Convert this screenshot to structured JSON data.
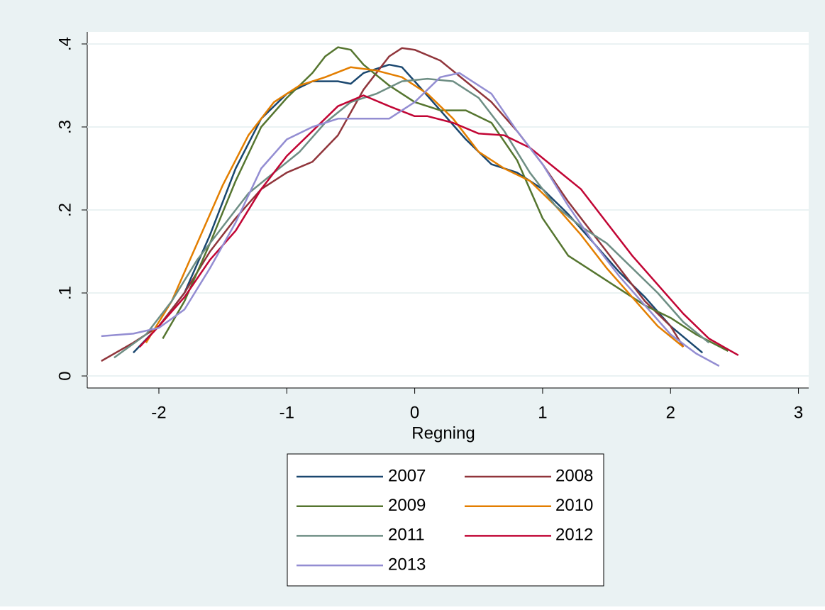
{
  "chart_data": {
    "type": "line",
    "x_label": "Regning",
    "xlim": [
      -2.56,
      3.08
    ],
    "xticks": [
      -2,
      -1,
      0,
      1,
      2,
      3
    ],
    "ylim": [
      -0.0145,
      0.4145
    ],
    "yticks": [
      0,
      {
        "value": 0.1,
        "label": ".1"
      },
      {
        "value": 0.2,
        "label": ".2"
      },
      {
        "value": 0.3,
        "label": ".3"
      },
      {
        "value": 0.4,
        "label": ".4"
      }
    ],
    "grid": true,
    "series": [
      {
        "name": "2007",
        "color": "#1a476f",
        "x": [
          -2.2,
          -2.0,
          -1.8,
          -1.6,
          -1.4,
          -1.2,
          -1.0,
          -0.8,
          -0.6,
          -0.5,
          -0.4,
          -0.2,
          -0.1,
          0.0,
          0.2,
          0.4,
          0.6,
          0.8,
          1.0,
          1.2,
          1.4,
          1.6,
          1.8,
          2.0,
          2.25
        ],
        "values": [
          0.028,
          0.06,
          0.1,
          0.17,
          0.25,
          0.31,
          0.34,
          0.355,
          0.355,
          0.352,
          0.365,
          0.375,
          0.372,
          0.355,
          0.32,
          0.285,
          0.255,
          0.245,
          0.225,
          0.195,
          0.16,
          0.125,
          0.095,
          0.06,
          0.028
        ]
      },
      {
        "name": "2008",
        "color": "#90353b",
        "x": [
          -2.45,
          -2.2,
          -2.0,
          -1.8,
          -1.6,
          -1.4,
          -1.2,
          -1.0,
          -0.8,
          -0.6,
          -0.4,
          -0.2,
          -0.1,
          0.0,
          0.2,
          0.4,
          0.6,
          0.8,
          1.0,
          1.2,
          1.4,
          1.6,
          1.8,
          2.0,
          2.1
        ],
        "values": [
          0.018,
          0.04,
          0.06,
          0.1,
          0.15,
          0.19,
          0.225,
          0.245,
          0.258,
          0.29,
          0.345,
          0.385,
          0.395,
          0.393,
          0.38,
          0.355,
          0.33,
          0.295,
          0.255,
          0.21,
          0.17,
          0.13,
          0.09,
          0.06,
          0.035
        ]
      },
      {
        "name": "2009",
        "color": "#55752f",
        "x": [
          -1.97,
          -1.8,
          -1.6,
          -1.4,
          -1.2,
          -1.0,
          -0.8,
          -0.7,
          -0.6,
          -0.5,
          -0.4,
          -0.2,
          0.0,
          0.2,
          0.4,
          0.6,
          0.8,
          1.0,
          1.2,
          1.4,
          1.6,
          1.8,
          2.0,
          2.2,
          2.45
        ],
        "values": [
          0.045,
          0.09,
          0.16,
          0.235,
          0.3,
          0.335,
          0.365,
          0.385,
          0.396,
          0.393,
          0.375,
          0.35,
          0.33,
          0.32,
          0.32,
          0.305,
          0.26,
          0.19,
          0.145,
          0.125,
          0.105,
          0.085,
          0.07,
          0.05,
          0.03
        ]
      },
      {
        "name": "2010",
        "color": "#e37e00",
        "x": [
          -2.1,
          -1.9,
          -1.7,
          -1.5,
          -1.3,
          -1.1,
          -0.9,
          -0.7,
          -0.5,
          -0.3,
          -0.1,
          0.1,
          0.3,
          0.5,
          0.7,
          0.9,
          1.1,
          1.3,
          1.5,
          1.7,
          1.9,
          2.1
        ],
        "values": [
          0.04,
          0.09,
          0.16,
          0.23,
          0.29,
          0.33,
          0.35,
          0.36,
          0.372,
          0.368,
          0.36,
          0.34,
          0.31,
          0.27,
          0.25,
          0.235,
          0.205,
          0.17,
          0.13,
          0.095,
          0.06,
          0.035
        ]
      },
      {
        "name": "2011",
        "color": "#6e8e84",
        "x": [
          -2.35,
          -2.1,
          -1.9,
          -1.7,
          -1.5,
          -1.3,
          -1.1,
          -0.9,
          -0.7,
          -0.5,
          -0.3,
          -0.1,
          0.1,
          0.3,
          0.5,
          0.7,
          0.9,
          1.1,
          1.3,
          1.5,
          1.7,
          1.9,
          2.1,
          2.3
        ],
        "values": [
          0.022,
          0.05,
          0.09,
          0.14,
          0.18,
          0.22,
          0.245,
          0.27,
          0.305,
          0.33,
          0.34,
          0.355,
          0.358,
          0.355,
          0.335,
          0.295,
          0.245,
          0.205,
          0.18,
          0.16,
          0.13,
          0.1,
          0.065,
          0.04
        ]
      },
      {
        "name": "2012",
        "color": "#c10534",
        "x": [
          -2.15,
          -2.0,
          -1.8,
          -1.6,
          -1.4,
          -1.2,
          -1.0,
          -0.8,
          -0.6,
          -0.4,
          -0.2,
          0.0,
          0.1,
          0.3,
          0.5,
          0.7,
          0.9,
          1.1,
          1.3,
          1.5,
          1.7,
          1.9,
          2.1,
          2.3,
          2.53
        ],
        "values": [
          0.035,
          0.06,
          0.095,
          0.14,
          0.175,
          0.225,
          0.265,
          0.295,
          0.325,
          0.338,
          0.325,
          0.313,
          0.313,
          0.305,
          0.292,
          0.29,
          0.275,
          0.25,
          0.225,
          0.185,
          0.145,
          0.11,
          0.075,
          0.045,
          0.025
        ]
      },
      {
        "name": "2013",
        "color": "#938dd2",
        "x": [
          -2.45,
          -2.2,
          -2.0,
          -1.8,
          -1.6,
          -1.4,
          -1.2,
          -1.0,
          -0.8,
          -0.6,
          -0.4,
          -0.2,
          0.0,
          0.2,
          0.35,
          0.6,
          0.8,
          1.0,
          1.2,
          1.4,
          1.6,
          1.8,
          2.0,
          2.2,
          2.38
        ],
        "values": [
          0.048,
          0.051,
          0.058,
          0.08,
          0.13,
          0.185,
          0.25,
          0.285,
          0.3,
          0.31,
          0.31,
          0.31,
          0.33,
          0.36,
          0.365,
          0.34,
          0.295,
          0.255,
          0.205,
          0.16,
          0.12,
          0.085,
          0.05,
          0.027,
          0.012
        ]
      }
    ]
  }
}
